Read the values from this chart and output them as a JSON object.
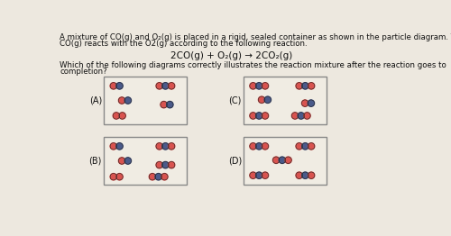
{
  "title_line1": "A mixture of CO(g) and O₂(g) is placed in a rigid, sealed container as shown in the particle diagram. The",
  "title_line2": "CO(g) reacts with the O2(g) according to the following reaction.",
  "equation": "2CO(g) + O₂(g) → 2CO₂(g)",
  "question_line1": "Which of the following diagrams correctly illustrates the reaction mixture after the reaction goes to",
  "question_line2": "completion?",
  "red_color": "#d9534f",
  "blue_color": "#4a5a8a",
  "bg_color": "#ede8df",
  "box_facecolor": "#f0ece3",
  "box_edgecolor": "#888888",
  "text_color": "#111111",
  "r": 4.8
}
